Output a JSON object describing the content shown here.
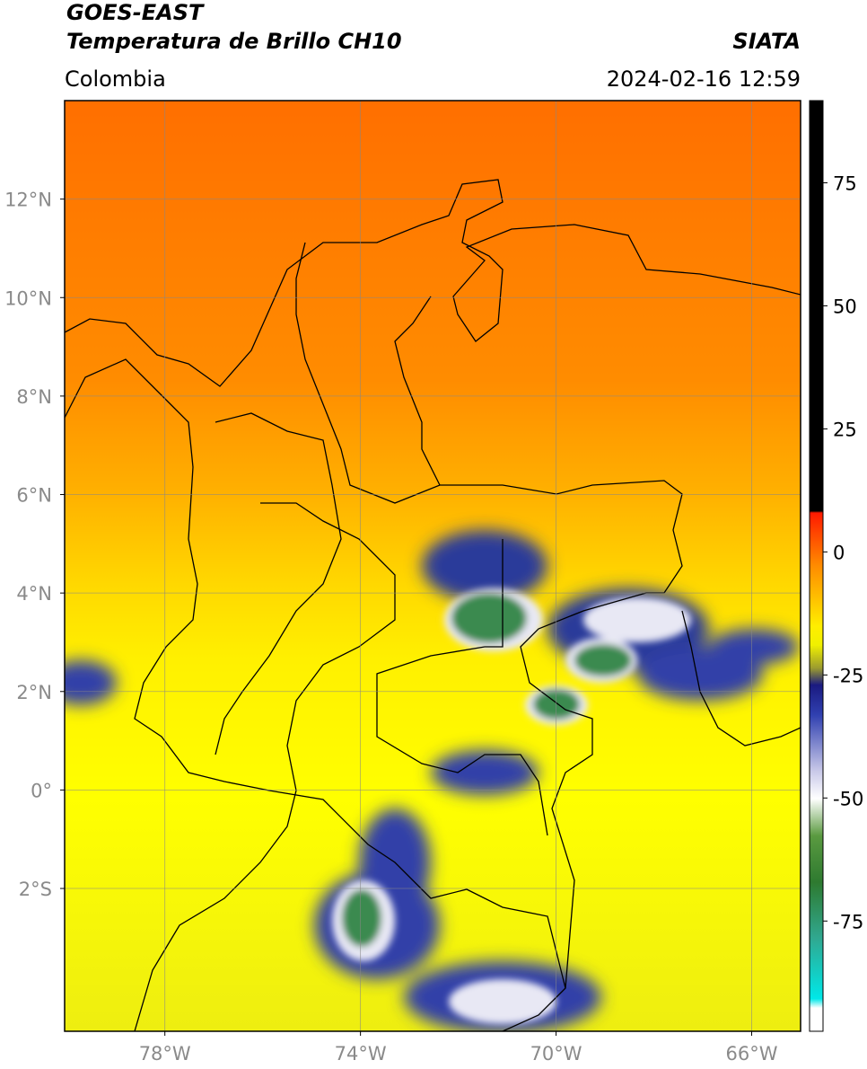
{
  "header": {
    "title": "GOES-EAST",
    "subtitle": "Temperatura de Brillo CH10",
    "source": "SIATA",
    "region": "Colombia",
    "datetime": "2024-02-16 12:59"
  },
  "map": {
    "lonlim": [
      -80.05,
      -65.0
    ],
    "latlim": [
      -4.9,
      14
    ],
    "lon_ticks": [
      {
        "value": -78,
        "label": "78°W"
      },
      {
        "value": -74,
        "label": "74°W"
      },
      {
        "value": -70,
        "label": "70°W"
      },
      {
        "value": -66,
        "label": "66°W"
      }
    ],
    "lat_ticks": [
      {
        "value": 12,
        "label": "12°N"
      },
      {
        "value": 10,
        "label": "10°N"
      },
      {
        "value": 8,
        "label": "8°N"
      },
      {
        "value": 6,
        "label": "6°N"
      },
      {
        "value": 4,
        "label": "4°N"
      },
      {
        "value": 2,
        "label": "2°N"
      },
      {
        "value": 0,
        "label": "0°"
      },
      {
        "value": -2,
        "label": "2°S"
      }
    ],
    "grid": true
  },
  "colorbar": {
    "lim": [
      -97.4,
      91.7
    ],
    "ticks": [
      75,
      50,
      25,
      0,
      -25,
      -50,
      -75
    ]
  }
}
